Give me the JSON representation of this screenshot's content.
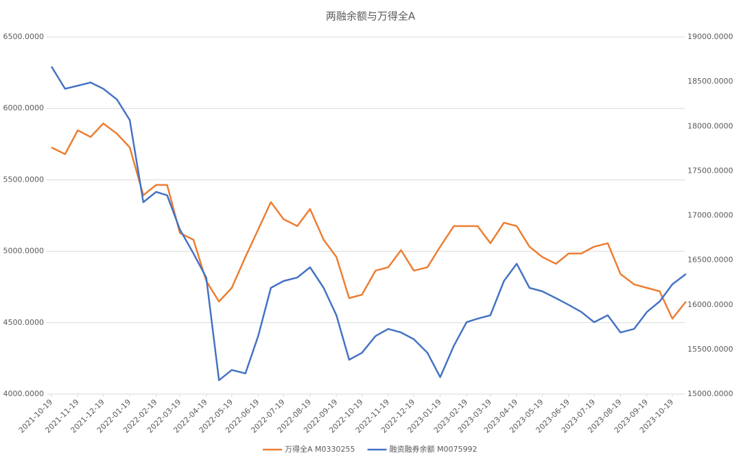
{
  "chart_data": {
    "type": "line",
    "title": "两融余额与万得全A",
    "x": [
      "2021-10-19",
      "2021-11-04",
      "2021-11-19",
      "2021-12-04",
      "2021-12-19",
      "2022-01-04",
      "2022-01-19",
      "2022-02-04",
      "2022-02-19",
      "2022-03-04",
      "2022-03-19",
      "2022-04-04",
      "2022-04-19",
      "2022-05-04",
      "2022-05-19",
      "2022-06-04",
      "2022-06-19",
      "2022-07-04",
      "2022-07-19",
      "2022-08-04",
      "2022-08-19",
      "2022-09-04",
      "2022-09-19",
      "2022-10-04",
      "2022-10-19",
      "2022-11-04",
      "2022-11-19",
      "2022-12-04",
      "2022-12-19",
      "2023-01-04",
      "2023-01-19",
      "2023-02-04",
      "2023-02-19",
      "2023-03-04",
      "2023-03-19",
      "2023-04-04",
      "2023-04-19",
      "2023-05-04",
      "2023-05-19",
      "2023-06-04",
      "2023-06-19",
      "2023-07-04",
      "2023-07-19",
      "2023-08-04",
      "2023-08-19",
      "2023-09-04",
      "2023-09-19",
      "2023-10-04",
      "2023-10-19",
      "2023-11-04"
    ],
    "series": [
      {
        "name": "万得全A M0330255",
        "color": "#ED7D31",
        "values": [
          5727,
          5680,
          5847,
          5800,
          5895,
          5823,
          5727,
          5392,
          5464,
          5464,
          5128,
          5080,
          4792,
          4648,
          4744,
          4960,
          5152,
          5344,
          5224,
          5176,
          5296,
          5080,
          4960,
          4672,
          4696,
          4864,
          4888,
          5008,
          4864,
          4888,
          5032,
          5176,
          5176,
          5176,
          5056,
          5200,
          5176,
          5032,
          4960,
          4912,
          4984,
          4984,
          5032,
          5056,
          4840,
          4768,
          4744,
          4720,
          4528,
          4648
        ]
      },
      {
        "name": "融资融券余额 M0075992",
        "color": "#4472C4",
        "axis": "y2",
        "values": [
          18670,
          18420,
          18455,
          18490,
          18420,
          18300,
          18070,
          17150,
          17265,
          17227,
          16843,
          16575,
          16306,
          15155,
          15270,
          15232,
          15650,
          16190,
          16267,
          16306,
          16420,
          16190,
          15883,
          15385,
          15462,
          15650,
          15730,
          15690,
          15615,
          15462,
          15190,
          15540,
          15805,
          15845,
          15883,
          16267,
          16460,
          16190,
          16152,
          16075,
          16000,
          15920,
          15805,
          15883,
          15690,
          15730,
          15920,
          16037,
          16230,
          16345
        ]
      }
    ],
    "xticks": [
      "2021-10-19",
      "2021-11-19",
      "2021-12-19",
      "2022-01-19",
      "2022-02-19",
      "2022-03-19",
      "2022-04-19",
      "2022-05-19",
      "2022-06-19",
      "2022-07-19",
      "2022-08-19",
      "2022-09-19",
      "2022-10-19",
      "2022-11-19",
      "2022-12-19",
      "2023-01-19",
      "2023-02-19",
      "2023-03-19",
      "2023-04-19",
      "2023-05-19",
      "2023-06-19",
      "2023-07-19",
      "2023-08-19",
      "2023-09-19",
      "2023-10-19"
    ],
    "ylim": [
      4000,
      6500
    ],
    "yticks": [
      {
        "value": 4000,
        "label": "4000.0000"
      },
      {
        "value": 4500,
        "label": "4500.0000"
      },
      {
        "value": 5000,
        "label": "5000.0000"
      },
      {
        "value": 5500,
        "label": "5500.0000"
      },
      {
        "value": 6000,
        "label": "6000.0000"
      },
      {
        "value": 6500,
        "label": "6500.0000"
      }
    ],
    "y2lim": [
      15000,
      19000
    ],
    "y2ticks": [
      {
        "value": 15000,
        "label": "15000.0000"
      },
      {
        "value": 15500,
        "label": "15500.0000"
      },
      {
        "value": 16000,
        "label": "16000.0000"
      },
      {
        "value": 16500,
        "label": "16500.0000"
      },
      {
        "value": 17000,
        "label": "17000.0000"
      },
      {
        "value": 17500,
        "label": "17500.0000"
      },
      {
        "value": 18000,
        "label": "18000.0000"
      },
      {
        "value": 18500,
        "label": "18500.0000"
      },
      {
        "value": 19000,
        "label": "19000.0000"
      }
    ],
    "grid": true,
    "legend": "bottom"
  }
}
